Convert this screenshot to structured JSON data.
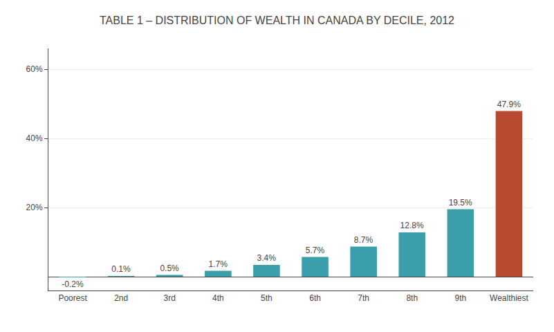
{
  "chart_data": {
    "type": "bar",
    "title": "TABLE 1 – DISTRIBUTION OF WEALTH IN CANADA BY DECILE, 2012",
    "categories": [
      "Poorest",
      "2nd",
      "3rd",
      "4th",
      "5th",
      "6th",
      "7th",
      "8th",
      "9th",
      "Wealthiest"
    ],
    "values": [
      -0.2,
      0.1,
      0.5,
      1.7,
      3.4,
      5.7,
      8.7,
      12.8,
      19.5,
      47.9
    ],
    "value_labels": [
      "-0.2%",
      "0.1%",
      "0.5%",
      "1.7%",
      "3.4%",
      "5.7%",
      "8.7%",
      "12.8%",
      "19.5%",
      "47.9%"
    ],
    "colors": [
      "#3a9faa",
      "#3a9faa",
      "#3a9faa",
      "#3a9faa",
      "#3a9faa",
      "#3a9faa",
      "#3a9faa",
      "#3a9faa",
      "#3a9faa",
      "#b84a32"
    ],
    "ylim": [
      -4,
      66
    ],
    "yticks": [
      {
        "value": 20,
        "label": "20%"
      },
      {
        "value": 40,
        "label": "40%"
      },
      {
        "value": 60,
        "label": "60%"
      }
    ],
    "grid": true,
    "data_labels": true
  }
}
